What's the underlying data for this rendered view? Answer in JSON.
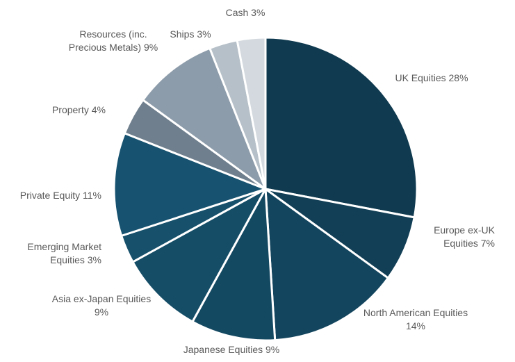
{
  "chart_data": {
    "type": "pie",
    "title": "",
    "start_angle_deg": 0,
    "direction": "clockwise",
    "slice_border_color": "#ffffff",
    "label_color": "#595959",
    "series": [
      {
        "name": "",
        "slices": [
          {
            "label": "UK Equities",
            "value": 28,
            "label_lines": [
              "UK Equities 28%"
            ],
            "color": "#0f3a4f"
          },
          {
            "label": "Europe ex-UK Equities",
            "value": 7,
            "label_lines": [
              "Europe ex-UK",
              "Equities 7%"
            ],
            "color": "#123f56"
          },
          {
            "label": "North American Equities",
            "value": 14,
            "label_lines": [
              "North American Equities",
              "14%"
            ],
            "color": "#13455e"
          },
          {
            "label": "Japanese Equities",
            "value": 9,
            "label_lines": [
              "Japanese Equities 9%"
            ],
            "color": "#144962"
          },
          {
            "label": "Asia ex-Japan Equities",
            "value": 9,
            "label_lines": [
              "Asia ex-Japan Equities",
              "9%"
            ],
            "color": "#154d67"
          },
          {
            "label": "Emerging Market Equities",
            "value": 3,
            "label_lines": [
              "Emerging Market",
              "Equities 3%"
            ],
            "color": "#16506b"
          },
          {
            "label": "Private Equity",
            "value": 11,
            "label_lines": [
              "Private Equity 11%"
            ],
            "color": "#175370"
          },
          {
            "label": "Property",
            "value": 4,
            "label_lines": [
              "Property 4%"
            ],
            "color": "#6f7f8d"
          },
          {
            "label": "Resources (inc. Precious Metals)",
            "value": 9,
            "label_lines": [
              "Resources (inc.",
              "Precious Metals) 9%"
            ],
            "color": "#8d9caa"
          },
          {
            "label": "Ships",
            "value": 3,
            "label_lines": [
              "Ships 3%"
            ],
            "color": "#b6c0c8"
          },
          {
            "label": "Cash",
            "value": 3,
            "label_lines": [
              "Cash 3%"
            ],
            "color": "#d3d9de"
          }
        ]
      }
    ]
  }
}
